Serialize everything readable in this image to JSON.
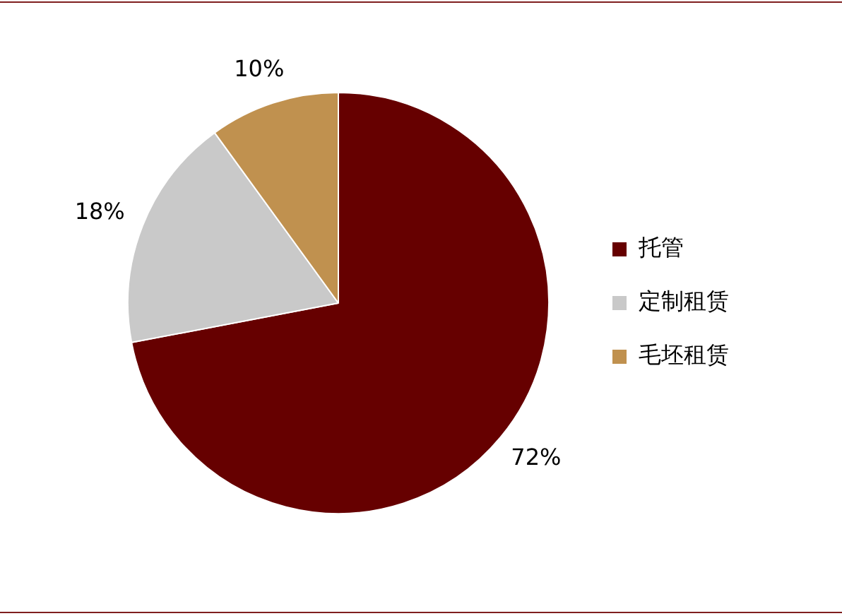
{
  "chart_data": {
    "type": "pie",
    "categories": [
      "托管",
      "定制租赁",
      "毛坯租赁"
    ],
    "values": [
      72,
      18,
      10
    ],
    "colors": [
      "#660000",
      "#c9c9c9",
      "#c0914f"
    ],
    "value_labels": [
      "72%",
      "18%",
      "10%"
    ],
    "legend": "right"
  }
}
